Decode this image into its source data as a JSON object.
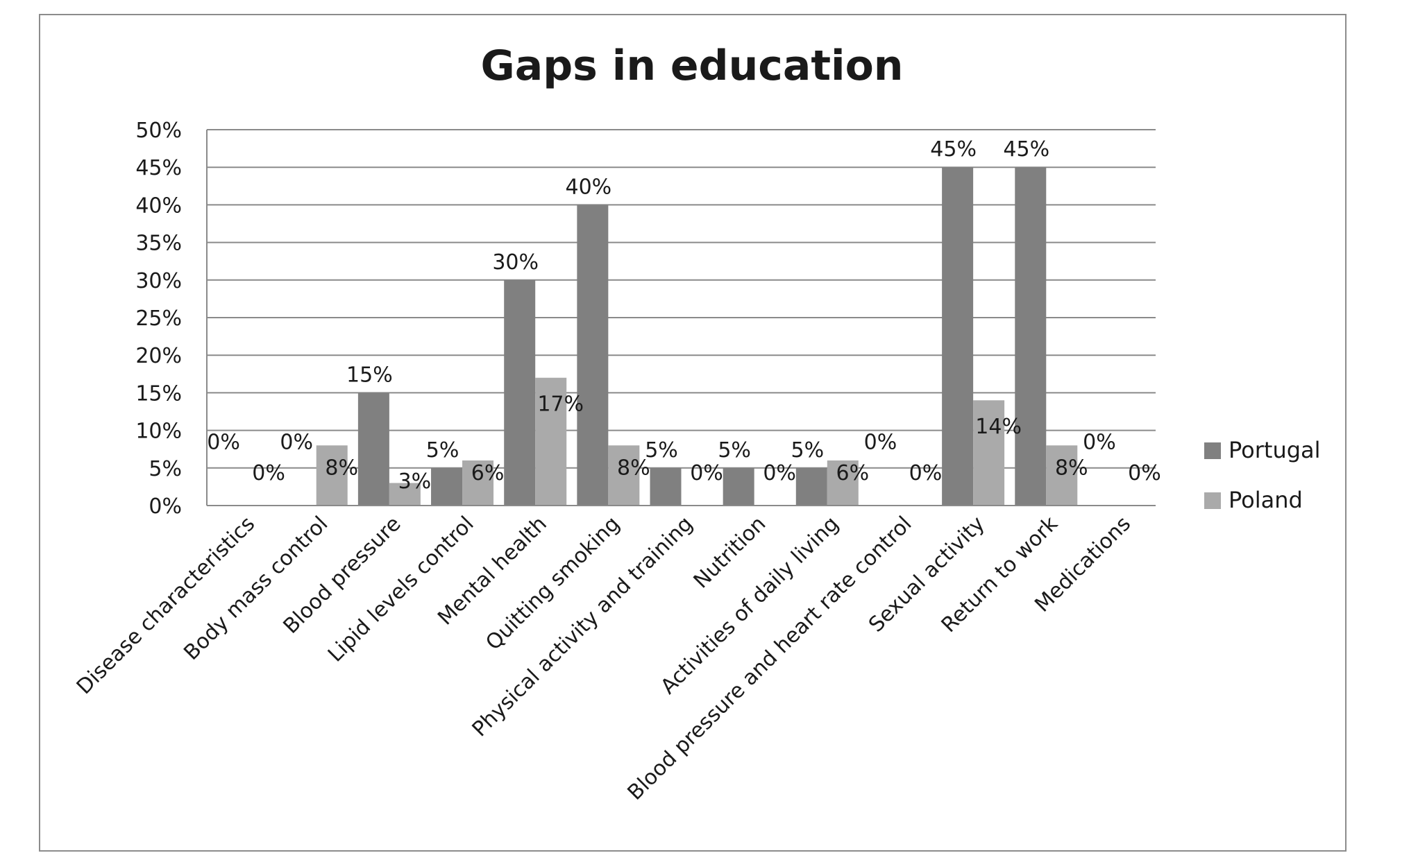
{
  "chart_data": {
    "type": "bar",
    "title": "Gaps in education",
    "xlabel": "",
    "ylabel": "",
    "ylim": [
      0,
      50
    ],
    "y_ticks": [
      "0%",
      "5%",
      "10%",
      "15%",
      "20%",
      "25%",
      "30%",
      "35%",
      "40%",
      "45%",
      "50%"
    ],
    "grid": true,
    "legend_position": "right",
    "categories": [
      "Disease characteristics",
      "Body mass control",
      "Blood pressure",
      "Lipid levels control",
      "Mental health",
      "Quitting smoking",
      "Physical activity and training",
      "Nutrition",
      "Activities of daily living",
      "Blood pressure and heart rate control",
      "Sexual activity",
      "Return to work",
      "Medications"
    ],
    "series": [
      {
        "name": "Portugal",
        "color": "#808080",
        "values": [
          0,
          0,
          15,
          5,
          30,
          40,
          5,
          5,
          5,
          0,
          45,
          45,
          0
        ],
        "labels": [
          "0%",
          "0%",
          "15%",
          "5%",
          "30%",
          "40%",
          "5%",
          "5%",
          "5%",
          "0%",
          "45%",
          "45%",
          "0%"
        ]
      },
      {
        "name": "Poland",
        "color": "#aaaaaa",
        "values": [
          0,
          8,
          3,
          6,
          17,
          8,
          0,
          0,
          6,
          0,
          14,
          8,
          0
        ],
        "labels": [
          "0%",
          "8%",
          "3%",
          "6%",
          "17%",
          "8%",
          "0%",
          "0%",
          "6%",
          "0%",
          "14%",
          "8%",
          "0%"
        ]
      }
    ]
  }
}
